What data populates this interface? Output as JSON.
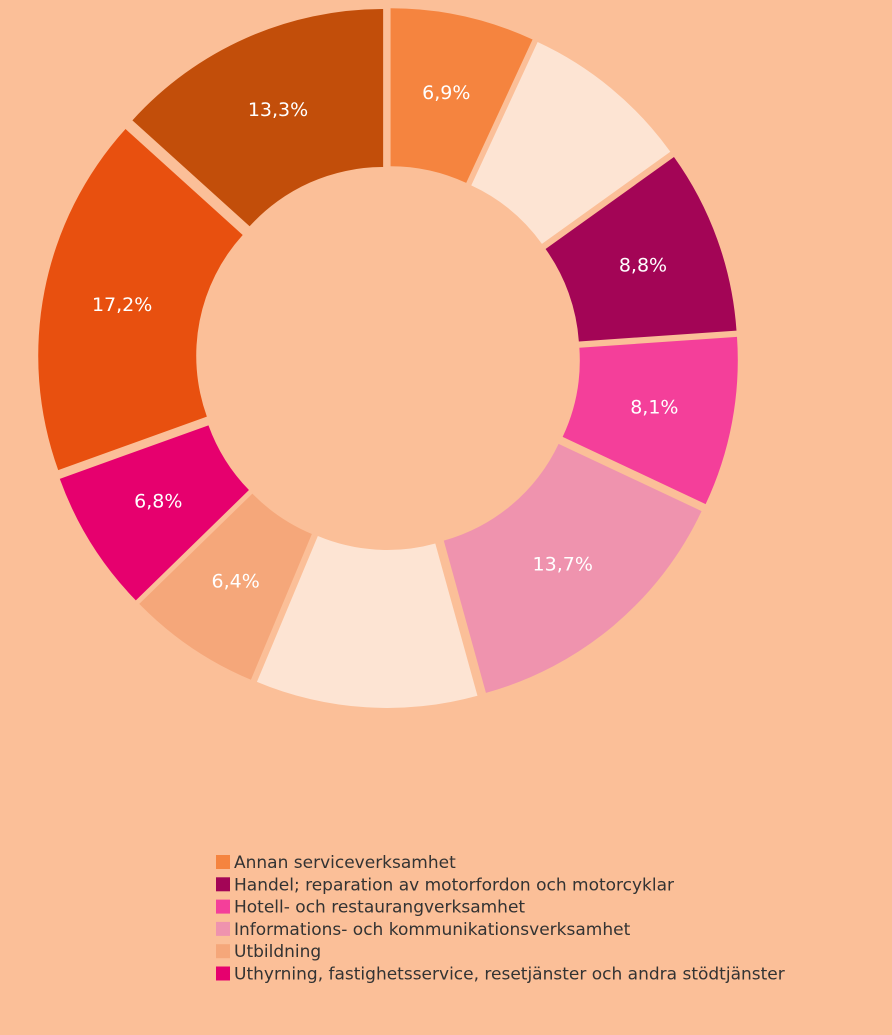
{
  "chart_data": {
    "type": "donut",
    "categories": [
      "Annan serviceverksamhet",
      null,
      "Handel; reparation av motorfordon och motorcyklar",
      "Hotell- och restaurangverksamhet",
      "Informations- och kommunikationsverksamhet",
      null,
      "Utbildning",
      "Uthyrning, fastighetsservice, resetjänster och andra stödtjänster",
      null,
      null
    ],
    "values": [
      6.9,
      8.2,
      8.8,
      8.1,
      13.7,
      10.6,
      6.4,
      6.8,
      17.2,
      13.3
    ],
    "value_labels": [
      "6,9%",
      null,
      "8,8%",
      "8,1%",
      "13,7%",
      null,
      "6,4%",
      "6,8%",
      "17,2%",
      "13,3%"
    ],
    "colors": [
      "#f5843f",
      "#fde4d3",
      "#a30556",
      "#f43f9a",
      "#ef93ae",
      "#fde4d3",
      "#f5a77a",
      "#e6006e",
      "#e8500f",
      "#c24e0a"
    ]
  }
}
